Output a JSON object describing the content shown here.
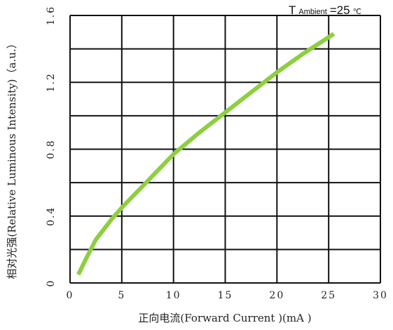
{
  "chart_data": {
    "type": "line",
    "annotation": {
      "prefix": "T",
      "subscript": "Ambient",
      "value": "=25",
      "unit": "℃"
    },
    "xlabel": "正向电流(Forward Current )(mA )",
    "ylabel": "相对光强(Relative Luminous Intensity)（a.u.）",
    "xlim": [
      0,
      30
    ],
    "ylim": [
      0,
      1.6
    ],
    "x_ticks": [
      {
        "value": 0,
        "label": "0"
      },
      {
        "value": 5,
        "label": "5"
      },
      {
        "value": 10,
        "label": "10"
      },
      {
        "value": 15,
        "label": "15"
      },
      {
        "value": 20,
        "label": "20"
      },
      {
        "value": 25,
        "label": "25"
      },
      {
        "value": 30,
        "label": "30"
      }
    ],
    "y_ticks": [
      {
        "value": 0,
        "label": "0"
      },
      {
        "value": 0.4,
        "label": "0.4"
      },
      {
        "value": 0.8,
        "label": "0.8"
      },
      {
        "value": 1.2,
        "label": "1.2"
      },
      {
        "value": 1.6,
        "label": "1.6"
      }
    ],
    "grid": true,
    "series": [
      {
        "color": "#8dcf3f",
        "x": [
          0.8,
          1.5,
          2.5,
          4,
          5,
          7.5,
          10,
          12.5,
          15,
          17.5,
          20,
          22.5,
          25.5
        ],
        "y": [
          0.05,
          0.14,
          0.26,
          0.38,
          0.45,
          0.61,
          0.77,
          0.9,
          1.02,
          1.14,
          1.26,
          1.37,
          1.49
        ]
      }
    ]
  }
}
